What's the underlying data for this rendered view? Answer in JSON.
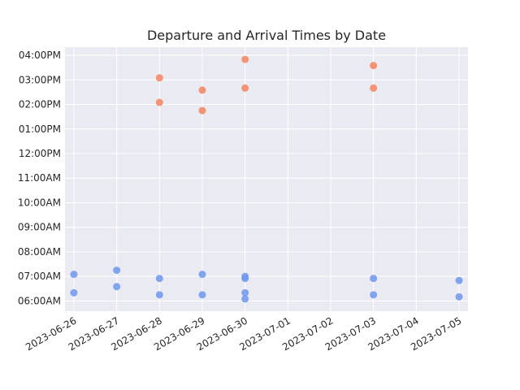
{
  "chart_data": {
    "type": "scatter",
    "title": "Departure and Arrival Times by Date",
    "xlabel": "",
    "ylabel": "",
    "x_range": [
      "2023-06-25T19:00",
      "2023-07-05T05:00"
    ],
    "y_range": [
      "05:35",
      "16:20"
    ],
    "x_ticks": [
      "2023-06-26",
      "2023-06-27",
      "2023-06-28",
      "2023-06-29",
      "2023-06-30",
      "2023-07-01",
      "2023-07-02",
      "2023-07-03",
      "2023-07-04",
      "2023-07-05"
    ],
    "y_ticks": [
      "06:00",
      "07:00",
      "08:00",
      "09:00",
      "10:00",
      "11:00",
      "12:00",
      "13:00",
      "14:00",
      "15:00",
      "16:00"
    ],
    "y_tick_labels": [
      "06:00AM",
      "07:00AM",
      "08:00AM",
      "09:00AM",
      "10:00AM",
      "11:00AM",
      "12:00PM",
      "01:00PM",
      "02:00PM",
      "03:00PM",
      "04:00PM"
    ],
    "grid": true,
    "series": [
      {
        "color": "#6f97ec",
        "points": [
          {
            "x": "2023-06-26",
            "y": "07:05"
          },
          {
            "x": "2023-06-26",
            "y": "06:20"
          },
          {
            "x": "2023-06-27",
            "y": "07:15"
          },
          {
            "x": "2023-06-27",
            "y": "06:35"
          },
          {
            "x": "2023-06-28",
            "y": "06:55"
          },
          {
            "x": "2023-06-28",
            "y": "06:15"
          },
          {
            "x": "2023-06-29",
            "y": "07:05"
          },
          {
            "x": "2023-06-29",
            "y": "06:15"
          },
          {
            "x": "2023-06-30",
            "y": "07:00"
          },
          {
            "x": "2023-06-30",
            "y": "06:55"
          },
          {
            "x": "2023-06-30",
            "y": "06:20"
          },
          {
            "x": "2023-06-30",
            "y": "06:05"
          },
          {
            "x": "2023-07-03",
            "y": "06:55"
          },
          {
            "x": "2023-07-03",
            "y": "06:15"
          },
          {
            "x": "2023-07-05",
            "y": "06:50"
          },
          {
            "x": "2023-07-05",
            "y": "06:10"
          }
        ]
      },
      {
        "color": "#f4845f",
        "points": [
          {
            "x": "2023-06-28",
            "y": "15:05"
          },
          {
            "x": "2023-06-28",
            "y": "14:05"
          },
          {
            "x": "2023-06-29",
            "y": "14:35"
          },
          {
            "x": "2023-06-29",
            "y": "13:45"
          },
          {
            "x": "2023-06-30",
            "y": "15:50"
          },
          {
            "x": "2023-06-30",
            "y": "14:40"
          },
          {
            "x": "2023-07-03",
            "y": "15:35"
          },
          {
            "x": "2023-07-03",
            "y": "14:40"
          }
        ]
      }
    ]
  }
}
